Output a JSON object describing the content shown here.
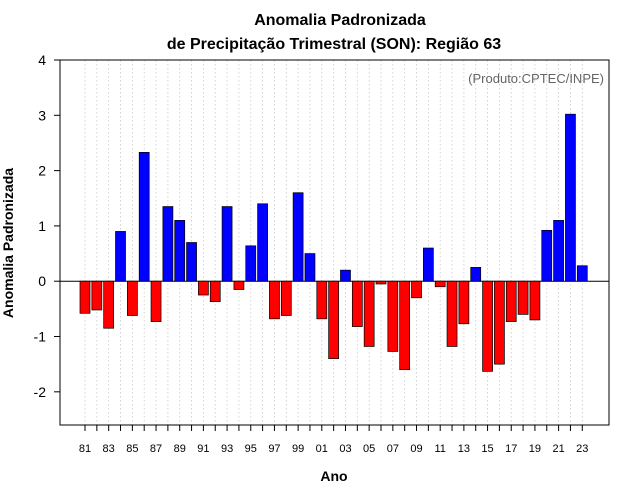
{
  "chart_data": {
    "type": "bar",
    "title": "Anomalia Padronizada",
    "subtitle": "de Precipitação Trimestral (SON): Região 63",
    "xlabel": "Ano",
    "ylabel": "Anomalia Padronizada",
    "annotation": "(Produto:CPTEC/INPE)",
    "ylim": [
      -2.6,
      4
    ],
    "yticks": [
      -2,
      -1,
      0,
      1,
      2,
      3,
      4
    ],
    "grid": "vertical dotted",
    "categories": [
      "81",
      "82",
      "83",
      "84",
      "85",
      "86",
      "87",
      "88",
      "89",
      "90",
      "91",
      "92",
      "93",
      "94",
      "95",
      "96",
      "97",
      "98",
      "99",
      "00",
      "01",
      "02",
      "03",
      "04",
      "05",
      "06",
      "07",
      "08",
      "09",
      "10",
      "11",
      "12",
      "13",
      "14",
      "15",
      "16",
      "17",
      "18",
      "19",
      "20",
      "21",
      "22",
      "23"
    ],
    "tick_labels": [
      "81",
      "83",
      "85",
      "87",
      "89",
      "91",
      "93",
      "95",
      "97",
      "99",
      "01",
      "03",
      "05",
      "07",
      "09",
      "11",
      "13",
      "15",
      "17",
      "19",
      "21",
      "23"
    ],
    "values": [
      -0.58,
      -0.52,
      -0.85,
      0.9,
      -0.62,
      2.33,
      -0.73,
      1.35,
      1.1,
      0.7,
      -0.25,
      -0.37,
      1.35,
      -0.15,
      0.64,
      1.4,
      -0.68,
      -0.62,
      1.6,
      0.5,
      -0.68,
      -1.4,
      0.2,
      -0.82,
      -1.18,
      -0.05,
      -1.27,
      -1.6,
      -0.3,
      0.6,
      -0.1,
      -1.18,
      -0.77,
      0.25,
      -1.63,
      -1.5,
      -0.73,
      -0.6,
      -0.7,
      0.92,
      1.1,
      3.02,
      0.28
    ],
    "positive_color": "#0000ff",
    "negative_color": "#ff0000"
  }
}
